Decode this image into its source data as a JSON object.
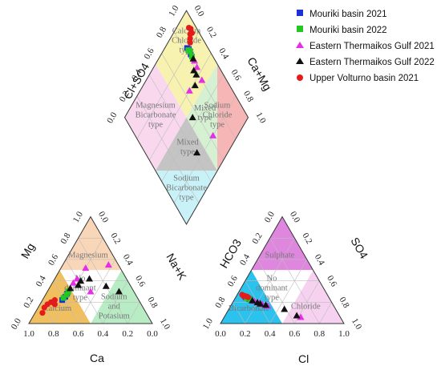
{
  "chart_data": {
    "type": "scatter",
    "title": "",
    "subtitle": "",
    "axes": {
      "cation": {
        "bottom_label": "Ca",
        "left_label": "Mg",
        "right_label": "Na+K",
        "bottom_ticks": [
          "1.0",
          "0.8",
          "0.6",
          "0.4",
          "0.2",
          "0.0"
        ],
        "left_ticks": [
          "0.0",
          "0.2",
          "0.4",
          "0.6",
          "0.8",
          "1.0"
        ],
        "right_ticks": [
          "1.0",
          "0.8",
          "0.6",
          "0.4",
          "0.2",
          "0.0"
        ]
      },
      "anion": {
        "bottom_label": "Cl",
        "left_label": "HCO3",
        "right_label": "SO4",
        "bottom_ticks": [
          "0.0",
          "0.2",
          "0.4",
          "0.6",
          "0.8",
          "1.0"
        ],
        "left_ticks": [
          "1.0",
          "0.8",
          "0.6",
          "0.4",
          "0.2",
          "0.0"
        ],
        "right_ticks": [
          "1.0",
          "0.8",
          "0.6",
          "0.4",
          "0.2",
          "0.0"
        ]
      },
      "diamond": {
        "upper_left_label": "Cl+SO4",
        "upper_right_label": "Ca+Mg",
        "upper_left_ticks": [
          "0.0",
          "0.2",
          "0.4",
          "0.6",
          "0.8",
          "1.0"
        ],
        "upper_right_ticks": [
          "1.0",
          "0.8",
          "0.6",
          "0.4",
          "0.2",
          "0.0"
        ]
      }
    },
    "zones": {
      "cation": [
        {
          "label": "Magnesium",
          "color": "#f9d6b8"
        },
        {
          "label": "No dominant type",
          "color": "#ffffff"
        },
        {
          "label": "Calcium",
          "color": "#f0c060"
        },
        {
          "label": "Sodium and Potasium",
          "color": "#b8ecc4"
        }
      ],
      "anion": [
        {
          "label": "Sulphate",
          "color": "#df86df"
        },
        {
          "label": "No dominant type",
          "color": "#ffffff"
        },
        {
          "label": "Bicarbonate",
          "color": "#2cc2ee"
        },
        {
          "label": "Chloride",
          "color": "#f6d2f0"
        }
      ],
      "diamond": [
        {
          "label": "Calcium Chloride type",
          "color": "#f8f2b0"
        },
        {
          "label": "Mixed type",
          "color": "#d6f0d2"
        },
        {
          "label": "Magnesium Bicarbonate type",
          "color": "#f9d8ee"
        },
        {
          "label": "Sodium Chloride type",
          "color": "#f6b6b6"
        },
        {
          "label": "Mixed type",
          "color": "#c4c4c4"
        },
        {
          "label": "Sodium Bicarbonate type",
          "color": "#c8f2f8"
        }
      ]
    },
    "legend": {
      "placement": "top-right"
    },
    "series": [
      {
        "name": "Mouriki basin 2021",
        "marker": "square",
        "color": "#1f2fd6",
        "points": [
          [
            0.62,
            0.22,
            0.1,
            0.8
          ],
          [
            0.58,
            0.25,
            0.12,
            0.76
          ],
          [
            0.55,
            0.28,
            0.08,
            0.82
          ]
        ]
      },
      {
        "name": "Mouriki basin 2022",
        "marker": "square",
        "color": "#22c922",
        "points": [
          [
            0.6,
            0.24,
            0.11,
            0.78
          ],
          [
            0.56,
            0.27,
            0.09,
            0.8
          ],
          [
            0.53,
            0.3,
            0.13,
            0.74
          ]
        ]
      },
      {
        "name": "Eastern Thermaikos Gulf 2021",
        "marker": "triangle",
        "color": "#e62ee6",
        "points": [
          [
            0.45,
            0.38,
            0.17,
            0.7
          ],
          [
            0.4,
            0.42,
            0.22,
            0.65
          ],
          [
            0.28,
            0.52,
            0.3,
            0.55
          ],
          [
            0.35,
            0.3,
            0.25,
            0.6
          ],
          [
            0.08,
            0.55,
            0.62,
            0.2
          ]
        ]
      },
      {
        "name": "Eastern Thermaikos Gulf 2022",
        "marker": "triangle",
        "color": "#111111",
        "points": [
          [
            0.5,
            0.33,
            0.15,
            0.72
          ],
          [
            0.42,
            0.36,
            0.2,
            0.66
          ],
          [
            0.38,
            0.4,
            0.23,
            0.62
          ],
          [
            0.3,
            0.42,
            0.28,
            0.58
          ],
          [
            0.2,
            0.35,
            0.45,
            0.45
          ],
          [
            0.12,
            0.3,
            0.58,
            0.25
          ]
        ]
      },
      {
        "name": "Upper Volturno basin 2021",
        "marker": "circle",
        "color": "#e41b1b",
        "points": [
          [
            0.8,
            0.15,
            0.05,
            0.88
          ],
          [
            0.76,
            0.18,
            0.06,
            0.85
          ],
          [
            0.72,
            0.2,
            0.07,
            0.86
          ],
          [
            0.68,
            0.22,
            0.09,
            0.84
          ],
          [
            0.84,
            0.1,
            0.04,
            0.9
          ],
          [
            0.7,
            0.18,
            0.1,
            0.82
          ]
        ]
      }
    ]
  }
}
